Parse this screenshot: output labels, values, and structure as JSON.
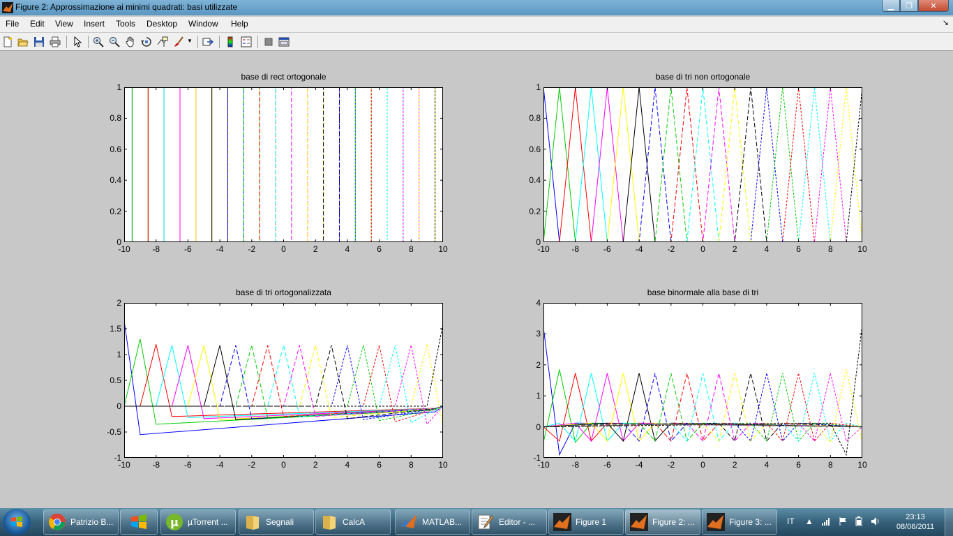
{
  "window": {
    "title": "Figure 2: Approssimazione ai minimi quadrati: basi utilizzate"
  },
  "menu": [
    "File",
    "Edit",
    "View",
    "Insert",
    "Tools",
    "Desktop",
    "Window",
    "Help"
  ],
  "toolbar": [
    "new-figure-icon",
    "open-file-icon",
    "save-icon",
    "print-icon",
    "edit-plot-arrow-icon",
    "zoom-in-icon",
    "zoom-out-icon",
    "pan-hand-icon",
    "rotate-3d-icon",
    "data-cursor-icon",
    "brush-icon",
    "link-plot-icon",
    "insert-colorbar-icon",
    "insert-legend-icon",
    "hide-plot-tools-icon",
    "show-plot-tools-icon"
  ],
  "colors": {
    "cycle": [
      "#0000ff",
      "#00cc00",
      "#ff0000",
      "#00ffff",
      "#ff00ff",
      "#ffff00",
      "#000000"
    ]
  },
  "chart_data": [
    {
      "type": "line",
      "title": "base di rect ortogonale",
      "xlim": [
        -10,
        10
      ],
      "ylim": [
        0,
        1
      ],
      "xticks": [
        "-10",
        "-8",
        "-6",
        "-4",
        "-2",
        "0",
        "2",
        "4",
        "6",
        "8",
        "10"
      ],
      "yticks": [
        "0",
        "0.2",
        "0.4",
        "0.6",
        "0.8",
        "1"
      ],
      "basis": "rect",
      "centers": [
        -10,
        -9,
        -8,
        -7,
        -6,
        -5,
        -4,
        -3,
        -2,
        -1,
        0,
        1,
        2,
        3,
        4,
        5,
        6,
        7,
        8,
        9,
        10
      ]
    },
    {
      "type": "line",
      "title": "base di tri non ortogonale",
      "xlim": [
        -10,
        10
      ],
      "ylim": [
        0,
        1
      ],
      "xticks": [
        "-10",
        "-8",
        "-6",
        "-4",
        "-2",
        "0",
        "2",
        "4",
        "6",
        "8",
        "10"
      ],
      "yticks": [
        "0",
        "0.2",
        "0.4",
        "0.6",
        "0.8",
        "1"
      ],
      "basis": "tri",
      "centers": [
        -10,
        -9,
        -8,
        -7,
        -6,
        -5,
        -4,
        -3,
        -2,
        -1,
        0,
        1,
        2,
        3,
        4,
        5,
        6,
        7,
        8,
        9,
        10
      ]
    },
    {
      "type": "line",
      "title": "base di tri ortogonalizzata",
      "xlim": [
        -10,
        10
      ],
      "ylim": [
        -1,
        2
      ],
      "xticks": [
        "-10",
        "-8",
        "-6",
        "-4",
        "-2",
        "0",
        "2",
        "4",
        "6",
        "8",
        "10"
      ],
      "yticks": [
        "-1",
        "-0.5",
        "0",
        "0.5",
        "1",
        "1.5",
        "2"
      ],
      "basis": "tri-orthogonalized",
      "centers": [
        -10,
        -9,
        -8,
        -7,
        -6,
        -5,
        -4,
        -3,
        -2,
        -1,
        0,
        1,
        2,
        3,
        4,
        5,
        6,
        7,
        8,
        9,
        10
      ],
      "peaks": [
        1.65,
        1.3,
        1.2,
        1.18,
        1.18,
        1.18,
        1.18,
        1.18,
        1.18,
        1.18,
        1.18,
        1.18,
        1.18,
        1.18,
        1.18,
        1.18,
        1.18,
        1.18,
        1.18,
        1.2,
        1.6
      ],
      "dips": [
        -0.55,
        -0.35,
        -0.2,
        -0.22,
        -0.24,
        -0.26,
        -0.26,
        -0.24,
        -0.22,
        -0.2,
        -0.2,
        -0.2,
        -0.22,
        -0.24,
        -0.26,
        -0.28,
        -0.3,
        -0.32,
        -0.35,
        -0.38,
        0
      ]
    },
    {
      "type": "line",
      "title": "base binormale alla base di tri",
      "xlim": [
        -10,
        10
      ],
      "ylim": [
        -1,
        4
      ],
      "xticks": [
        "-10",
        "-8",
        "-6",
        "-4",
        "-2",
        "0",
        "2",
        "4",
        "6",
        "8",
        "10"
      ],
      "yticks": [
        "-1",
        "0",
        "1",
        "2",
        "3",
        "4"
      ],
      "basis": "tri-biorthogonal",
      "centers": [
        -10,
        -9,
        -8,
        -7,
        -6,
        -5,
        -4,
        -3,
        -2,
        -1,
        0,
        1,
        2,
        3,
        4,
        5,
        6,
        7,
        8,
        9,
        10
      ],
      "peaks": [
        3.2,
        1.85,
        1.73,
        1.73,
        1.73,
        1.73,
        1.73,
        1.73,
        1.73,
        1.73,
        1.73,
        1.73,
        1.73,
        1.73,
        1.73,
        1.73,
        1.73,
        1.73,
        1.73,
        1.85,
        3.3
      ],
      "side": [
        -0.9,
        -0.5,
        -0.46,
        -0.46,
        -0.46,
        -0.46,
        -0.46,
        -0.46,
        -0.46,
        -0.46,
        -0.46,
        -0.46,
        -0.46,
        -0.46,
        -0.46,
        -0.46,
        -0.46,
        -0.46,
        -0.46,
        -0.5,
        -0.9
      ],
      "tail": [
        0.12,
        0.12,
        0.12,
        0.12,
        0.12,
        0.12,
        0.12,
        0.12,
        0.12,
        0.12,
        0.12,
        0.12,
        0.12,
        0.12,
        0.12,
        0.12,
        0.12,
        0.12,
        0.12,
        0.12,
        0.12
      ]
    }
  ],
  "taskbar": {
    "items": [
      {
        "label": "Patrizio B...",
        "icon": "chrome-icon"
      },
      {
        "label": "",
        "icon": "windows-media-icon"
      },
      {
        "label": "µTorrent ...",
        "icon": "utorrent-icon"
      },
      {
        "label": "Segnali",
        "icon": "folder-icon"
      },
      {
        "label": "CalcA",
        "icon": "folder-icon"
      },
      {
        "label": "MATLAB...",
        "icon": "matlab-icon"
      },
      {
        "label": "Editor - ...",
        "icon": "editor-icon"
      },
      {
        "label": "Figure 1",
        "icon": "matlab-figure-icon"
      },
      {
        "label": "Figure 2: ...",
        "icon": "matlab-figure-icon"
      },
      {
        "label": "Figure 3: ...",
        "icon": "matlab-figure-icon"
      }
    ],
    "lang": "IT",
    "time": "23:13",
    "date": "08/06/2011"
  }
}
